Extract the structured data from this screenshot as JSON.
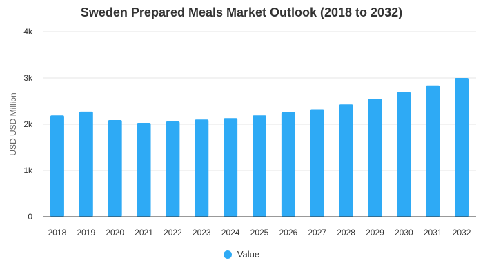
{
  "chart_data": {
    "type": "bar",
    "title": "Sweden Prepared Meals Market Outlook (2018 to 2032)",
    "xlabel": "",
    "ylabel": "USD USD Million",
    "ylim": [
      0,
      4000
    ],
    "yticks": [
      0,
      1000,
      2000,
      3000,
      4000
    ],
    "ytick_labels": [
      "0",
      "1k",
      "2k",
      "3k",
      "4k"
    ],
    "categories": [
      "2018",
      "2019",
      "2020",
      "2021",
      "2022",
      "2023",
      "2024",
      "2025",
      "2026",
      "2027",
      "2028",
      "2029",
      "2030",
      "2031",
      "2032"
    ],
    "series": [
      {
        "name": "Value",
        "color": "#2eaaf5",
        "values": [
          2190,
          2270,
          2090,
          2030,
          2060,
          2100,
          2130,
          2190,
          2260,
          2320,
          2430,
          2550,
          2690,
          2840,
          3000
        ]
      }
    ],
    "grid": true,
    "legend_position": "bottom"
  }
}
